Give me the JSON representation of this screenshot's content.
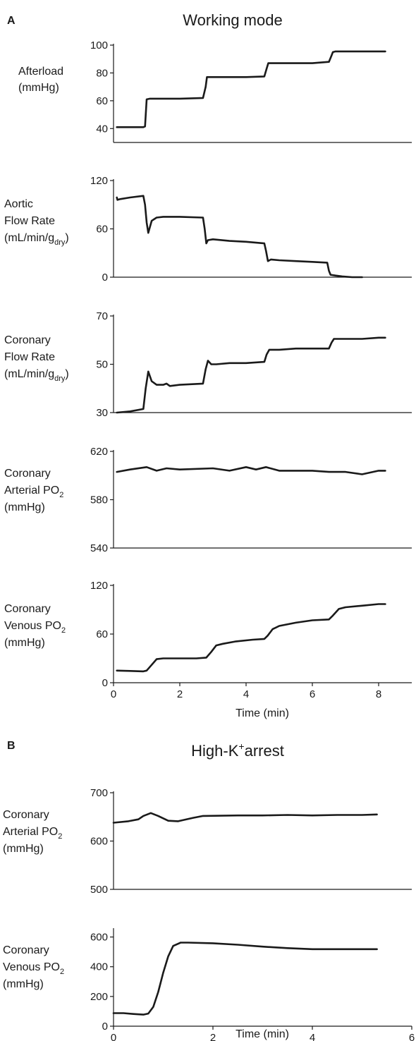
{
  "chart_data": [
    {
      "panel": "A",
      "title": "Working mode",
      "type": "line",
      "xlabel": "Time (min)",
      "xlim": [
        0,
        9
      ],
      "xticks": [
        0,
        2,
        4,
        6,
        8
      ],
      "subplots": [
        {
          "ylabel_lines": [
            "Afterload",
            "(mmHg)"
          ],
          "ylim": [
            30,
            100
          ],
          "yticks": [
            40,
            60,
            80,
            100
          ],
          "series": [
            {
              "x": [
                0.1,
                0.9,
                0.95,
                1.0,
                1.1,
                1.5,
                2.0,
                2.7,
                2.78,
                2.82,
                2.9,
                3.5,
                4.0,
                4.55,
                4.62,
                4.67,
                4.8,
                5.5,
                6.0,
                6.5,
                6.57,
                6.62,
                6.7,
                7.2,
                7.8,
                8.2
              ],
              "y": [
                41,
                41,
                41.5,
                61,
                61.5,
                61.5,
                61.5,
                62,
                70,
                77,
                77,
                77,
                77,
                77.5,
                83,
                87,
                87,
                87,
                87,
                88,
                92,
                95,
                95.5,
                95.5,
                95.5,
                95.5
              ]
            }
          ]
        },
        {
          "ylabel_lines": [
            "Aortic",
            "Flow Rate",
            "(mL/min/g_dry)"
          ],
          "ylim": [
            0,
            120
          ],
          "yticks": [
            0,
            60,
            120
          ],
          "series": [
            {
              "x": [
                0.1,
                0.12,
                0.2,
                0.5,
                0.9,
                0.95,
                1.0,
                1.05,
                1.15,
                1.3,
                1.5,
                2.0,
                2.7,
                2.75,
                2.8,
                2.85,
                3.0,
                3.5,
                4.0,
                4.55,
                4.6,
                4.66,
                4.75,
                5.0,
                5.5,
                6.0,
                6.45,
                6.5,
                6.55,
                6.7,
                6.9,
                7.2,
                7.5
              ],
              "y": [
                99,
                96,
                97,
                99,
                101,
                90,
                68,
                55,
                70,
                74,
                75,
                75,
                74,
                60,
                42,
                46,
                47,
                45,
                44,
                42,
                33,
                20,
                22,
                21,
                20,
                19,
                18,
                8,
                3,
                2,
                1,
                0,
                0
              ]
            }
          ]
        },
        {
          "ylabel_lines": [
            "Coronary",
            "Flow Rate",
            "(mL/min/g_dry)"
          ],
          "ylim": [
            30,
            70
          ],
          "yticks": [
            30,
            50,
            70
          ],
          "series": [
            {
              "x": [
                0.1,
                0.5,
                0.9,
                0.97,
                1.05,
                1.15,
                1.3,
                1.5,
                1.6,
                1.7,
                2.0,
                2.7,
                2.78,
                2.85,
                2.95,
                3.1,
                3.5,
                4.0,
                4.55,
                4.62,
                4.7,
                5.0,
                5.5,
                6.0,
                6.5,
                6.58,
                6.65,
                7.0,
                7.5,
                8.0,
                8.2
              ],
              "y": [
                30,
                30.5,
                31.5,
                40,
                47,
                43,
                41.5,
                41.5,
                42,
                41,
                41.5,
                42,
                48,
                51.5,
                50,
                50,
                50.5,
                50.5,
                51,
                54,
                56,
                56,
                56.5,
                56.5,
                56.5,
                59,
                60.5,
                60.5,
                60.5,
                61,
                61
              ]
            }
          ]
        },
        {
          "ylabel_lines": [
            "Coronary",
            "Arterial PO_2",
            "(mmHg)"
          ],
          "ylim": [
            540,
            620
          ],
          "yticks": [
            540,
            580,
            620
          ],
          "series": [
            {
              "x": [
                0.1,
                0.5,
                1.0,
                1.3,
                1.6,
                2.0,
                3.0,
                3.5,
                4.0,
                4.3,
                4.6,
                5.0,
                6.0,
                6.5,
                7.0,
                7.5,
                8.0,
                8.2
              ],
              "y": [
                603,
                605,
                607,
                604,
                606,
                605,
                606,
                604,
                607,
                605,
                607,
                604,
                604,
                603,
                603,
                601,
                604,
                604
              ]
            }
          ]
        },
        {
          "ylabel_lines": [
            "Coronary",
            "Venous PO_2",
            "(mmHg)"
          ],
          "ylim": [
            0,
            120
          ],
          "yticks": [
            0,
            60,
            120
          ],
          "series": [
            {
              "x": [
                0.1,
                0.5,
                0.9,
                1.0,
                1.15,
                1.3,
                1.5,
                2.0,
                2.5,
                2.8,
                2.95,
                3.1,
                3.3,
                3.7,
                4.2,
                4.55,
                4.65,
                4.8,
                5.0,
                5.5,
                6.0,
                6.5,
                6.6,
                6.8,
                7.0,
                7.5,
                8.0,
                8.2
              ],
              "y": [
                15,
                14.5,
                14,
                15,
                22,
                29,
                30,
                30,
                30,
                31,
                38,
                46,
                48,
                51,
                53,
                54,
                58,
                66,
                70,
                74,
                77,
                78,
                82,
                91,
                93,
                95,
                97,
                97
              ]
            }
          ]
        }
      ]
    },
    {
      "panel": "B",
      "title": "High-K^+arrest",
      "type": "line",
      "xlabel": "Time (min)",
      "xlim": [
        0,
        6
      ],
      "xticks": [
        0,
        2,
        4,
        6
      ],
      "subplots": [
        {
          "ylabel_lines": [
            "Coronary",
            "Arterial PO_2",
            "(mmHg)"
          ],
          "ylim": [
            500,
            700
          ],
          "yticks": [
            500,
            600,
            700
          ],
          "series": [
            {
              "x": [
                0,
                0.3,
                0.5,
                0.6,
                0.75,
                0.9,
                1.1,
                1.3,
                1.6,
                1.8,
                2.5,
                3.0,
                3.5,
                4.0,
                4.5,
                5.0,
                5.3
              ],
              "y": [
                638,
                641,
                645,
                652,
                658,
                652,
                642,
                641,
                648,
                652,
                653,
                653,
                654,
                653,
                654,
                654,
                655
              ]
            }
          ]
        },
        {
          "ylabel_lines": [
            "Coronary",
            "Venous PO_2",
            "(mmHg)"
          ],
          "ylim": [
            0,
            650
          ],
          "yticks": [
            0,
            200,
            400,
            600
          ],
          "series": [
            {
              "x": [
                0,
                0.2,
                0.4,
                0.6,
                0.7,
                0.8,
                0.9,
                1.0,
                1.1,
                1.2,
                1.35,
                1.5,
                2.0,
                2.5,
                3.0,
                3.5,
                4.0,
                4.5,
                5.0,
                5.3
              ],
              "y": [
                88,
                88,
                82,
                78,
                85,
                130,
                230,
                360,
                470,
                540,
                562,
                562,
                558,
                548,
                535,
                525,
                518,
                518,
                518,
                518
              ]
            }
          ]
        }
      ]
    }
  ],
  "figure": {
    "panel_a_label": "A",
    "panel_a_title": "Working mode",
    "panel_b_label": "B",
    "panel_b_title": "High-K+arrest",
    "xlabel": "Time (min)",
    "line_color": "#1a1a1a"
  }
}
